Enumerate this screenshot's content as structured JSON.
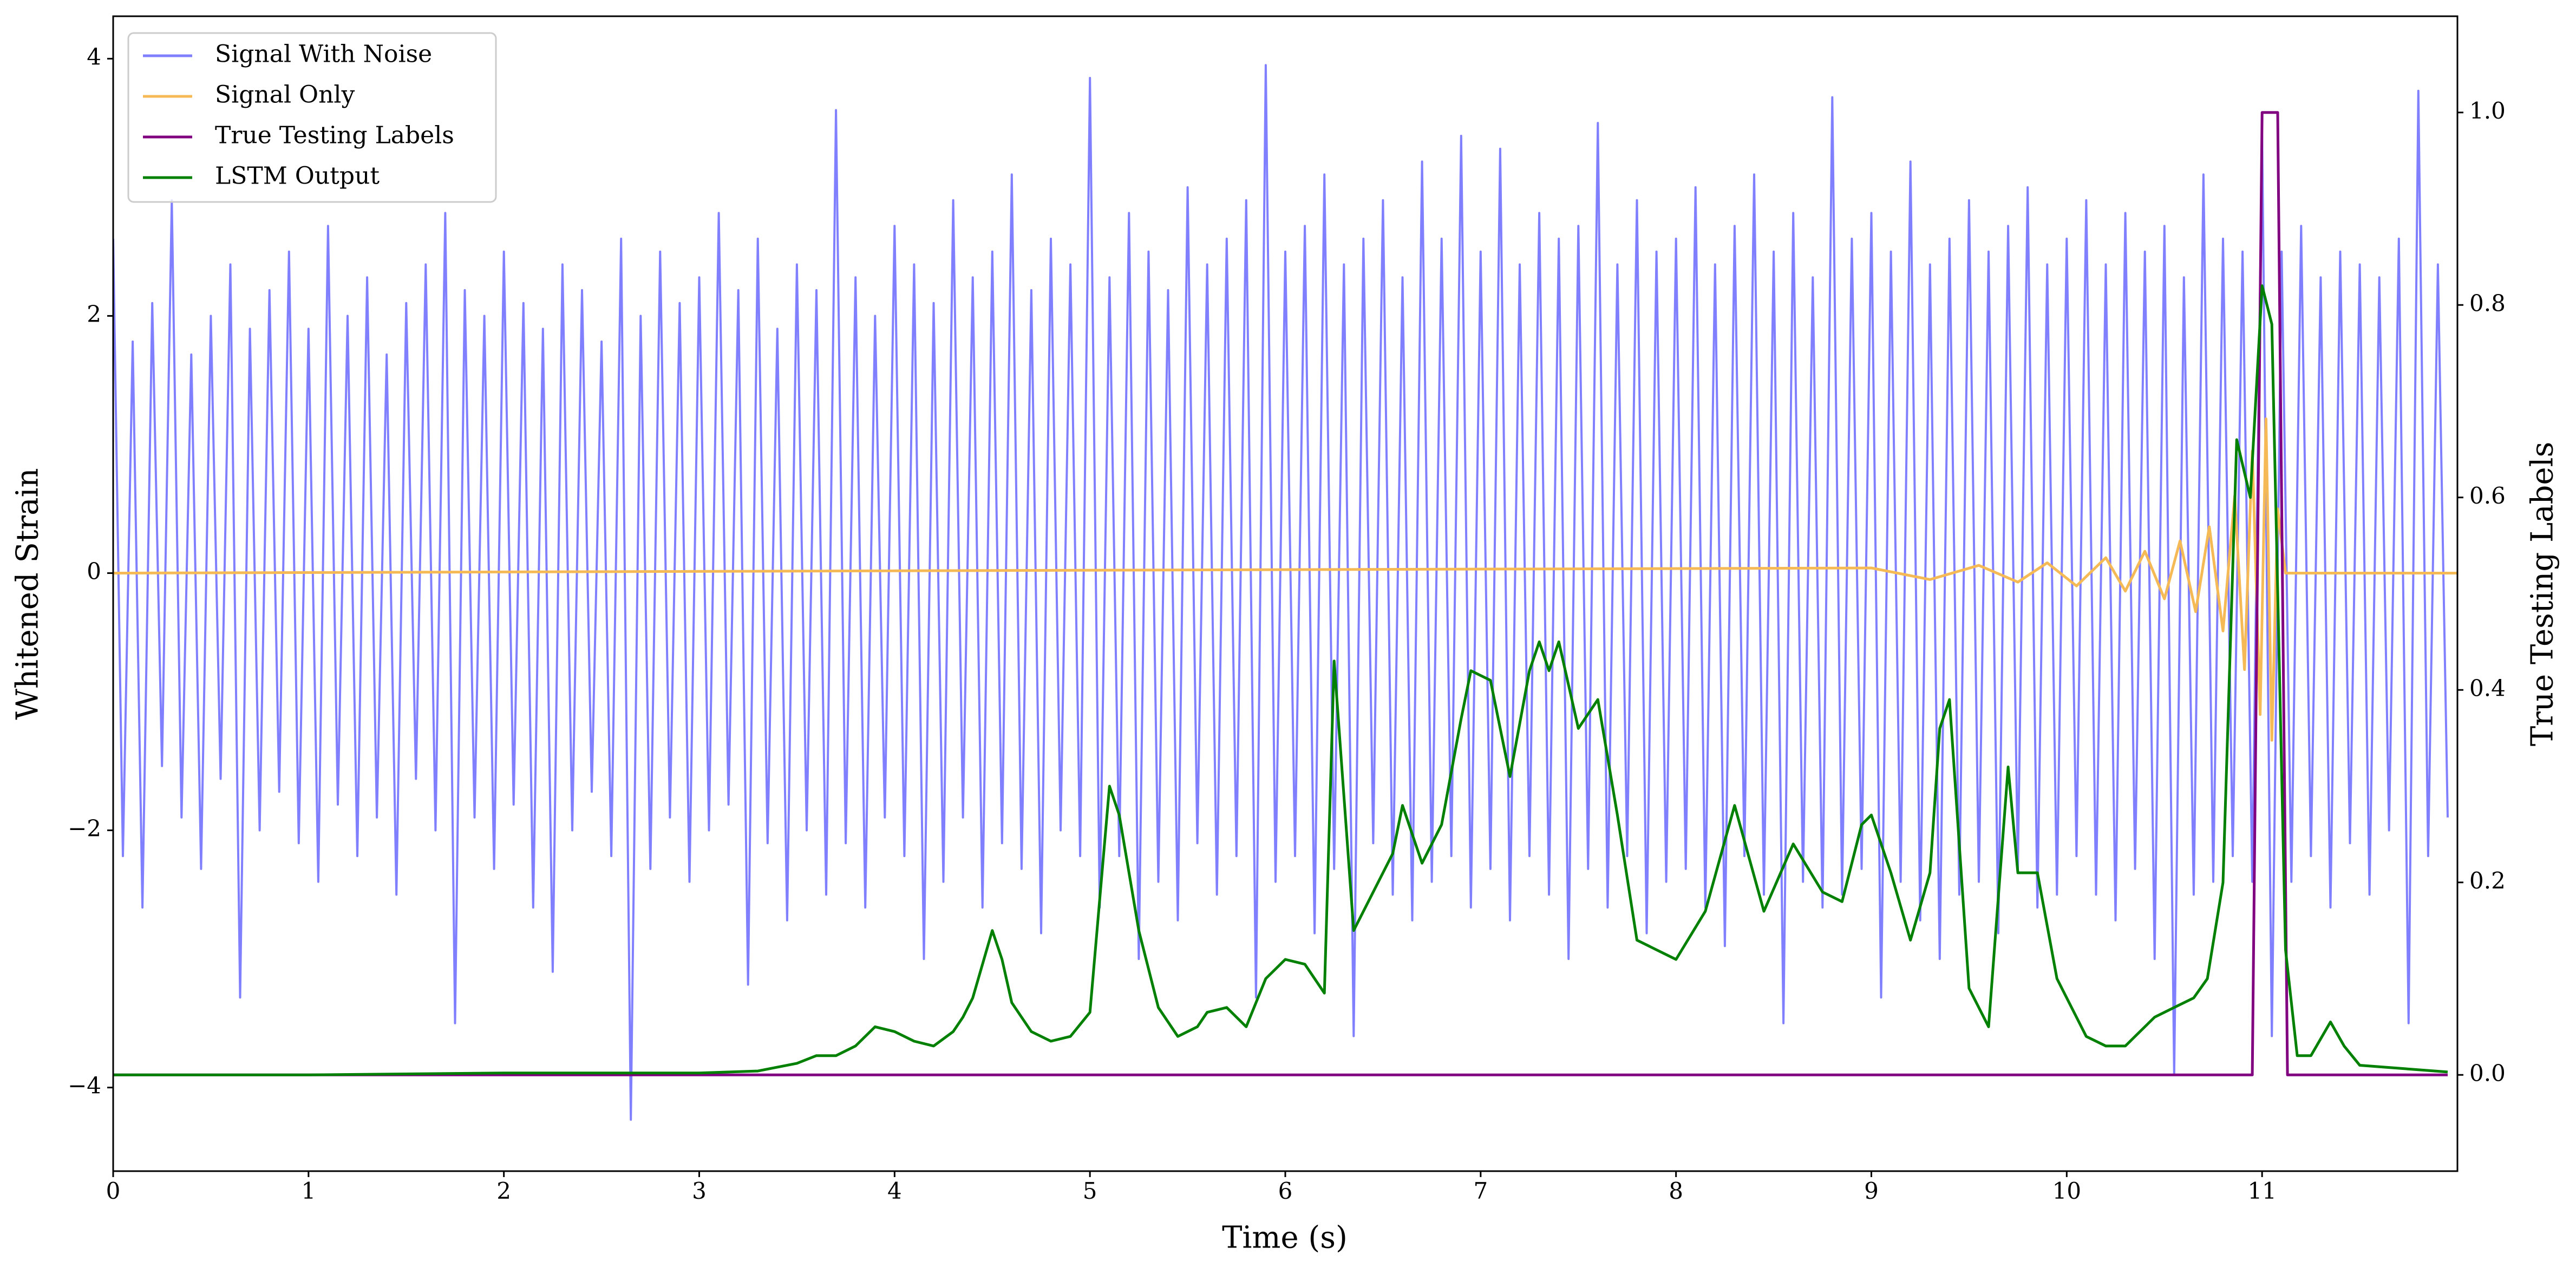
{
  "chart_data": {
    "type": "line",
    "xlabel": "Time (s)",
    "ylabel": "Whitened Strain",
    "y2label": "True Testing Labels",
    "xlim": [
      0,
      12
    ],
    "xticks": [
      0,
      1,
      2,
      3,
      4,
      5,
      6,
      7,
      8,
      9,
      10,
      11
    ],
    "ylim": [
      -4.65,
      4.33
    ],
    "yticks": [
      {
        "value": -4,
        "label": "−4"
      },
      {
        "value": -2,
        "label": "−2"
      },
      0,
      2,
      4
    ],
    "y2lim": [
      -0.1,
      1.1
    ],
    "y2ticks": [
      {
        "value": 0,
        "label": "0.0"
      },
      0.2,
      0.4,
      0.6,
      0.8,
      {
        "value": 1,
        "label": "1.0"
      }
    ],
    "legend": "upper left",
    "series": [
      {
        "name": "Signal With Noise",
        "color": "#8080ff",
        "axis": "y",
        "x": [
          0,
          0.05,
          0.1,
          0.15,
          0.2,
          0.25,
          0.3,
          0.35,
          0.4,
          0.45,
          0.5,
          0.55,
          0.6,
          0.65,
          0.7,
          0.75,
          0.8,
          0.85,
          0.9,
          0.95,
          1,
          1.05,
          1.1,
          1.15,
          1.2,
          1.25,
          1.3,
          1.35,
          1.4,
          1.45,
          1.5,
          1.55,
          1.6,
          1.65,
          1.7,
          1.75,
          1.8,
          1.85,
          1.9,
          1.95,
          2,
          2.05,
          2.1,
          2.15,
          2.2,
          2.25,
          2.3,
          2.35,
          2.4,
          2.45,
          2.5,
          2.55,
          2.6,
          2.65,
          2.7,
          2.75,
          2.8,
          2.85,
          2.9,
          2.95,
          3,
          3.05,
          3.1,
          3.15,
          3.2,
          3.25,
          3.3,
          3.35,
          3.4,
          3.45,
          3.5,
          3.55,
          3.6,
          3.65,
          3.7,
          3.75,
          3.8,
          3.85,
          3.9,
          3.95,
          4,
          4.05,
          4.1,
          4.15,
          4.2,
          4.25,
          4.3,
          4.35,
          4.4,
          4.45,
          4.5,
          4.55,
          4.6,
          4.65,
          4.7,
          4.75,
          4.8,
          4.85,
          4.9,
          4.95,
          5,
          5.05,
          5.1,
          5.15,
          5.2,
          5.25,
          5.3,
          5.35,
          5.4,
          5.45,
          5.5,
          5.55,
          5.6,
          5.65,
          5.7,
          5.75,
          5.8,
          5.85,
          5.9,
          5.95,
          6,
          6.05,
          6.1,
          6.15,
          6.2,
          6.25,
          6.3,
          6.35,
          6.4,
          6.45,
          6.5,
          6.55,
          6.6,
          6.65,
          6.7,
          6.75,
          6.8,
          6.85,
          6.9,
          6.95,
          7,
          7.05,
          7.1,
          7.15,
          7.2,
          7.25,
          7.3,
          7.35,
          7.4,
          7.45,
          7.5,
          7.55,
          7.6,
          7.65,
          7.7,
          7.75,
          7.8,
          7.85,
          7.9,
          7.95,
          8,
          8.05,
          8.1,
          8.15,
          8.2,
          8.25,
          8.3,
          8.35,
          8.4,
          8.45,
          8.5,
          8.55,
          8.6,
          8.65,
          8.7,
          8.75,
          8.8,
          8.85,
          8.9,
          8.95,
          9,
          9.05,
          9.1,
          9.15,
          9.2,
          9.25,
          9.3,
          9.35,
          9.4,
          9.45,
          9.5,
          9.55,
          9.6,
          9.65,
          9.7,
          9.75,
          9.8,
          9.85,
          9.9,
          9.95,
          10,
          10.05,
          10.1,
          10.15,
          10.2,
          10.25,
          10.3,
          10.35,
          10.4,
          10.45,
          10.5,
          10.55,
          10.6,
          10.65,
          10.7,
          10.75,
          10.8,
          10.85,
          10.9,
          10.95,
          11,
          11.05,
          11.1,
          11.15,
          11.2,
          11.25,
          11.3,
          11.35,
          11.4,
          11.45,
          11.5,
          11.55,
          11.6,
          11.65,
          11.7,
          11.75,
          11.8,
          11.85,
          11.9,
          11.95
        ],
        "values": [
          2.6,
          -2.2,
          1.8,
          -2.6,
          2.1,
          -1.5,
          2.9,
          -1.9,
          1.7,
          -2.3,
          2.0,
          -1.6,
          2.4,
          -3.3,
          1.9,
          -2.0,
          2.2,
          -1.7,
          2.5,
          -2.1,
          1.9,
          -2.4,
          2.7,
          -1.8,
          2.0,
          -2.2,
          2.3,
          -1.9,
          1.7,
          -2.5,
          2.1,
          -1.6,
          2.4,
          -2.0,
          2.8,
          -3.5,
          2.2,
          -1.9,
          2.0,
          -2.3,
          2.5,
          -1.8,
          2.1,
          -2.6,
          1.9,
          -3.1,
          2.4,
          -2.0,
          2.2,
          -1.7,
          1.8,
          -2.2,
          2.6,
          -4.25,
          2.0,
          -2.3,
          2.5,
          -1.9,
          2.1,
          -2.4,
          2.3,
          -2.0,
          2.8,
          -1.8,
          2.2,
          -3.2,
          2.6,
          -2.1,
          1.9,
          -2.7,
          2.4,
          -2.0,
          2.2,
          -2.5,
          3.6,
          -2.1,
          2.3,
          -2.6,
          2.0,
          -1.9,
          2.7,
          -2.2,
          2.4,
          -3.0,
          2.1,
          -2.4,
          2.9,
          -1.9,
          2.3,
          -2.6,
          2.5,
          -2.1,
          3.1,
          -2.3,
          2.2,
          -2.8,
          2.6,
          -2.0,
          2.4,
          -2.2,
          3.85,
          -2.6,
          2.3,
          -2.2,
          2.8,
          -3.0,
          2.5,
          -2.4,
          2.2,
          -2.7,
          3.0,
          -2.1,
          2.4,
          -2.5,
          2.6,
          -2.2,
          2.9,
          -3.3,
          3.95,
          -2.4,
          2.5,
          -2.2,
          2.7,
          -2.8,
          3.1,
          -2.3,
          2.4,
          -3.6,
          2.6,
          -2.1,
          2.9,
          -2.5,
          2.3,
          -2.7,
          3.2,
          -2.4,
          2.6,
          -2.2,
          3.4,
          -2.6,
          2.5,
          -2.3,
          3.3,
          -2.7,
          2.4,
          -2.2,
          2.8,
          -2.5,
          2.6,
          -3.0,
          2.7,
          -2.3,
          3.5,
          -2.6,
          2.4,
          -2.2,
          2.9,
          -2.8,
          2.5,
          -2.4,
          2.6,
          -2.3,
          3.0,
          -2.6,
          2.4,
          -2.9,
          2.7,
          -2.2,
          3.1,
          -2.5,
          2.5,
          -3.5,
          2.8,
          -2.4,
          2.3,
          -2.6,
          3.7,
          -2.5,
          2.6,
          -2.3,
          2.8,
          -3.3,
          2.5,
          -2.4,
          3.2,
          -2.7,
          2.4,
          -3.0,
          2.6,
          -2.5,
          2.9,
          -2.4,
          2.5,
          -2.8,
          2.7,
          -2.3,
          3.0,
          -2.6,
          2.4,
          -2.5,
          2.6,
          -2.2,
          2.9,
          -2.5,
          2.4,
          -2.7,
          2.8,
          -2.3,
          2.5,
          -3.0,
          2.7,
          -3.9,
          2.3,
          -2.5,
          3.1,
          -2.4,
          2.6,
          -2.2,
          2.5,
          -2.4,
          3.4,
          -3.6,
          2.5,
          -2.4,
          2.7,
          -2.2,
          2.3,
          -2.6,
          2.5,
          -2.1,
          2.4,
          -2.5,
          2.3,
          -2.0,
          2.6,
          -3.5,
          3.75,
          -2.2,
          2.4,
          -1.9
        ]
      },
      {
        "name": "Signal Only",
        "color": "#f5b955",
        "axis": "y",
        "x": [
          0,
          9.0,
          9.3,
          9.55,
          9.75,
          9.9,
          10.05,
          10.2,
          10.3,
          10.4,
          10.5,
          10.58,
          10.66,
          10.73,
          10.8,
          10.86,
          10.91,
          10.95,
          10.99,
          11.02,
          11.05,
          11.08,
          11.12,
          12
        ],
        "values": [
          0,
          0.04,
          -0.05,
          0.06,
          -0.07,
          0.08,
          -0.1,
          0.12,
          -0.14,
          0.17,
          -0.2,
          0.25,
          -0.3,
          0.36,
          -0.45,
          0.6,
          -0.75,
          0.95,
          -1.1,
          1.2,
          -1.3,
          0.5,
          0,
          0
        ]
      },
      {
        "name": "True Testing Labels",
        "color": "#800080",
        "axis": "y2",
        "x": [
          0,
          10.95,
          11.0,
          11.08,
          11.13,
          11.95
        ],
        "values": [
          0,
          0,
          1,
          1,
          0,
          0
        ]
      },
      {
        "name": "LSTM Output",
        "color": "#008000",
        "axis": "y2",
        "x": [
          0,
          1,
          2,
          3,
          3.3,
          3.5,
          3.6,
          3.7,
          3.8,
          3.9,
          4.0,
          4.1,
          4.2,
          4.3,
          4.35,
          4.4,
          4.5,
          4.55,
          4.6,
          4.7,
          4.8,
          4.9,
          5.0,
          5.1,
          5.15,
          5.25,
          5.35,
          5.45,
          5.55,
          5.6,
          5.7,
          5.8,
          5.9,
          6.0,
          6.1,
          6.2,
          6.25,
          6.35,
          6.45,
          6.55,
          6.6,
          6.7,
          6.8,
          6.9,
          6.95,
          7.05,
          7.15,
          7.25,
          7.3,
          7.35,
          7.4,
          7.5,
          7.6,
          7.7,
          7.8,
          7.9,
          8.0,
          8.15,
          8.3,
          8.45,
          8.6,
          8.75,
          8.85,
          8.95,
          9.0,
          9.1,
          9.2,
          9.3,
          9.35,
          9.4,
          9.5,
          9.6,
          9.7,
          9.75,
          9.85,
          9.95,
          10.1,
          10.2,
          10.3,
          10.45,
          10.55,
          10.65,
          10.72,
          10.8,
          10.87,
          10.94,
          11.0,
          11.05,
          11.12,
          11.18,
          11.25,
          11.35,
          11.42,
          11.5,
          11.95
        ],
        "values": [
          0,
          0,
          0.002,
          0.002,
          0.004,
          0.012,
          0.02,
          0.02,
          0.03,
          0.05,
          0.045,
          0.035,
          0.03,
          0.045,
          0.06,
          0.08,
          0.15,
          0.12,
          0.075,
          0.045,
          0.035,
          0.04,
          0.065,
          0.3,
          0.27,
          0.15,
          0.07,
          0.04,
          0.05,
          0.065,
          0.07,
          0.05,
          0.1,
          0.12,
          0.115,
          0.085,
          0.43,
          0.15,
          0.19,
          0.23,
          0.28,
          0.22,
          0.26,
          0.37,
          0.42,
          0.41,
          0.31,
          0.42,
          0.45,
          0.42,
          0.45,
          0.36,
          0.39,
          0.27,
          0.14,
          0.13,
          0.12,
          0.17,
          0.28,
          0.17,
          0.24,
          0.19,
          0.18,
          0.26,
          0.27,
          0.21,
          0.14,
          0.21,
          0.36,
          0.39,
          0.09,
          0.05,
          0.32,
          0.21,
          0.21,
          0.1,
          0.04,
          0.03,
          0.03,
          0.06,
          0.07,
          0.08,
          0.1,
          0.2,
          0.66,
          0.6,
          0.82,
          0.78,
          0.13,
          0.02,
          0.02,
          0.055,
          0.03,
          0.01,
          0.003
        ]
      }
    ]
  }
}
